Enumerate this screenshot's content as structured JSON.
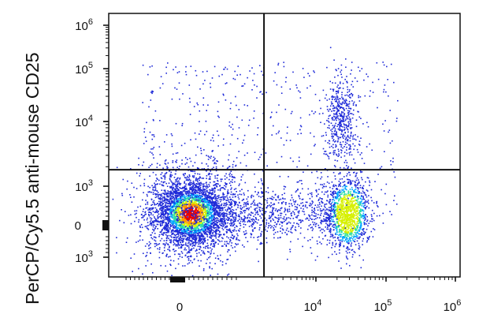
{
  "chart_data": {
    "type": "scatter",
    "title": "",
    "ylabel": "PerCP/Cy5.5 anti-mouse CD25",
    "xlabel": "",
    "x_scale": "biexponential",
    "y_scale": "biexponential",
    "x_ticks": [
      {
        "value": 0,
        "base": "0",
        "exp": ""
      },
      {
        "value": 10000,
        "base": "10",
        "exp": "4"
      },
      {
        "value": 100000,
        "base": "10",
        "exp": "5"
      },
      {
        "value": 1000000,
        "base": "10",
        "exp": "6"
      }
    ],
    "y_ticks": [
      {
        "value": -1000,
        "base": "10",
        "exp": "3"
      },
      {
        "value": 0,
        "base": "0",
        "exp": ""
      },
      {
        "value": 1000,
        "base": "10",
        "exp": "3"
      },
      {
        "value": 10000,
        "base": "10",
        "exp": "4"
      },
      {
        "value": 100000,
        "base": "10",
        "exp": "5"
      },
      {
        "value": 1000000,
        "base": "10",
        "exp": "6"
      }
    ],
    "quadrant_gate": {
      "x": 1500,
      "y": 1800
    },
    "populations": [
      {
        "center": [
          150,
          300
        ],
        "count": 3200,
        "density": "high"
      },
      {
        "center": [
          28000,
          300
        ],
        "count": 1300,
        "density": "medium"
      },
      {
        "center": [
          22000,
          12000
        ],
        "count": 450,
        "density": "low"
      }
    ],
    "density_colors": [
      "#1e2ad8",
      "#00a6ff",
      "#2ee0a0",
      "#d6f000",
      "#ff9a00",
      "#e80000"
    ],
    "grid": false,
    "legend": "none"
  }
}
